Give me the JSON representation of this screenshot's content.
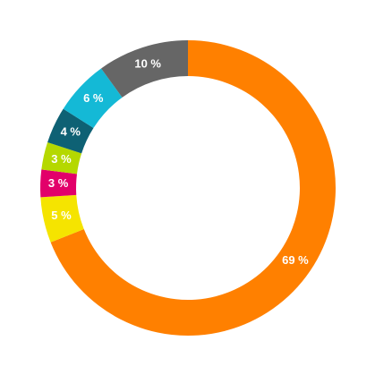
{
  "chart_data": {
    "type": "donut",
    "values": [
      69,
      5,
      3,
      3,
      4,
      6,
      10
    ],
    "value_labels": [
      "69 %",
      "5 %",
      "3 %",
      "3 %",
      "4 %",
      "6 %",
      "10 %"
    ],
    "colors": [
      "#ff8000",
      "#f5e400",
      "#e2006a",
      "#b5d800",
      "#0e6174",
      "#14b9d6",
      "#666666"
    ]
  }
}
